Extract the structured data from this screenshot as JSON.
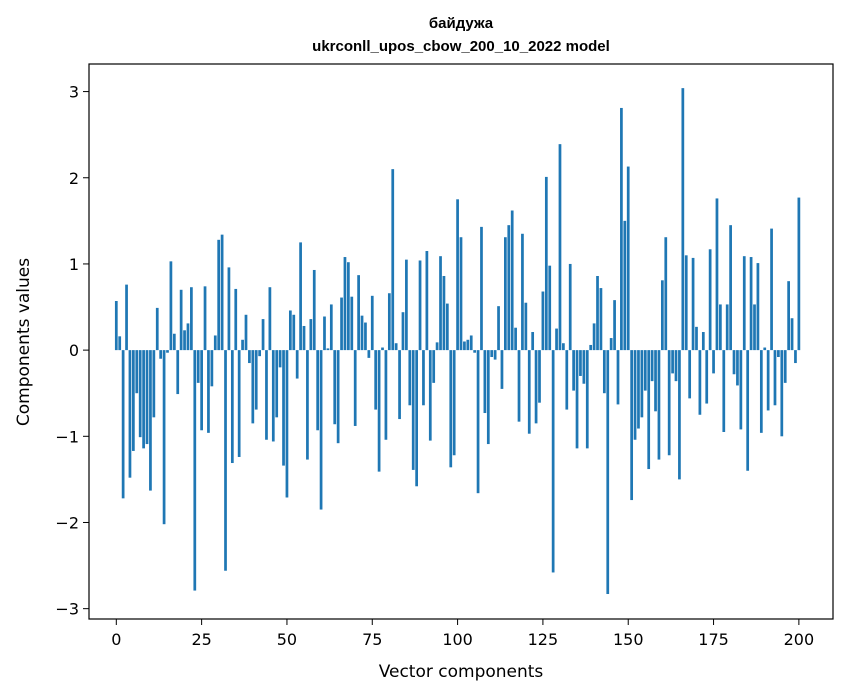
{
  "chart_data": {
    "type": "bar",
    "title": "байдужа",
    "subtitle": "ukrconll_upos_cbow_200_10_2022 model",
    "xlabel": "Vector components",
    "ylabel": "Components values",
    "xlim": [
      -8,
      210
    ],
    "ylim": [
      -3.12,
      3.32
    ],
    "xticks": [
      0,
      25,
      50,
      75,
      100,
      125,
      150,
      175,
      200
    ],
    "yticks": [
      -3,
      -2,
      -1,
      0,
      1,
      2,
      3
    ],
    "ytick_labels": [
      "−3",
      "−2",
      "−1",
      "0",
      "1",
      "2",
      "3"
    ],
    "grid": false,
    "color": "#1f77b4",
    "series": [
      {
        "values": [
          0.57,
          0.16,
          -1.72,
          0.76,
          -1.48,
          -1.17,
          -0.5,
          -1.01,
          -1.14,
          -1.09,
          -1.63,
          -0.78,
          0.49,
          -0.1,
          -2.02,
          -0.03,
          1.03,
          0.19,
          -0.51,
          0.7,
          0.23,
          0.31,
          0.73,
          -2.79,
          -0.38,
          -0.93,
          0.74,
          -0.96,
          -0.42,
          0.17,
          1.28,
          1.34,
          -2.56,
          0.96,
          -1.31,
          0.71,
          -1.24,
          0.12,
          0.41,
          -0.15,
          -0.85,
          -0.69,
          -0.07,
          0.36,
          -1.04,
          0.73,
          -1.06,
          -0.78,
          -0.2,
          -1.34,
          -1.71,
          0.46,
          0.41,
          -0.33,
          1.25,
          0.28,
          -1.27,
          0.36,
          0.93,
          -0.93,
          -1.85,
          0.39,
          0.02,
          0.53,
          -0.86,
          -1.08,
          0.61,
          1.08,
          1.02,
          0.62,
          -0.88,
          0.87,
          0.4,
          0.32,
          -0.09,
          0.63,
          -0.69,
          -1.41,
          0.03,
          -1.04,
          0.66,
          2.1,
          0.08,
          -0.8,
          0.44,
          1.05,
          -0.64,
          -1.39,
          -1.58,
          1.04,
          -0.64,
          1.15,
          -1.05,
          -0.38,
          0.09,
          1.09,
          0.86,
          0.54,
          -1.36,
          -1.22,
          1.75,
          1.31,
          0.1,
          0.12,
          0.17,
          -0.03,
          -1.66,
          1.43,
          -0.73,
          -1.09,
          -0.08,
          -0.11,
          0.51,
          -0.45,
          1.31,
          1.45,
          1.62,
          0.26,
          -0.83,
          1.35,
          0.55,
          -0.97,
          0.21,
          -0.85,
          -0.61,
          0.68,
          2.01,
          0.98,
          -2.58,
          0.25,
          2.39,
          0.08,
          -0.69,
          1.0,
          -0.47,
          -1.14,
          -0.3,
          -0.39,
          -1.14,
          0.06,
          0.31,
          0.86,
          0.72,
          -0.5,
          -2.83,
          0.14,
          0.58,
          -0.63,
          2.81,
          1.5,
          2.13,
          -1.74,
          -1.04,
          -0.91,
          -0.78,
          -0.47,
          -1.38,
          -0.36,
          -0.71,
          -1.27,
          0.81,
          1.31,
          -1.22,
          -0.27,
          -0.36,
          -1.5,
          3.04,
          1.1,
          -0.56,
          1.07,
          0.27,
          -0.75,
          0.21,
          -0.62,
          1.17,
          -0.27,
          1.76,
          0.53,
          -0.95,
          0.53,
          1.45,
          -0.28,
          -0.41,
          -0.92,
          1.09,
          -1.4,
          1.08,
          0.53,
          1.01,
          -0.96,
          0.03,
          -0.7,
          1.41,
          -0.64,
          -0.08,
          -1.0,
          -0.38,
          0.8,
          0.37,
          -0.15,
          1.77
        ]
      }
    ]
  }
}
